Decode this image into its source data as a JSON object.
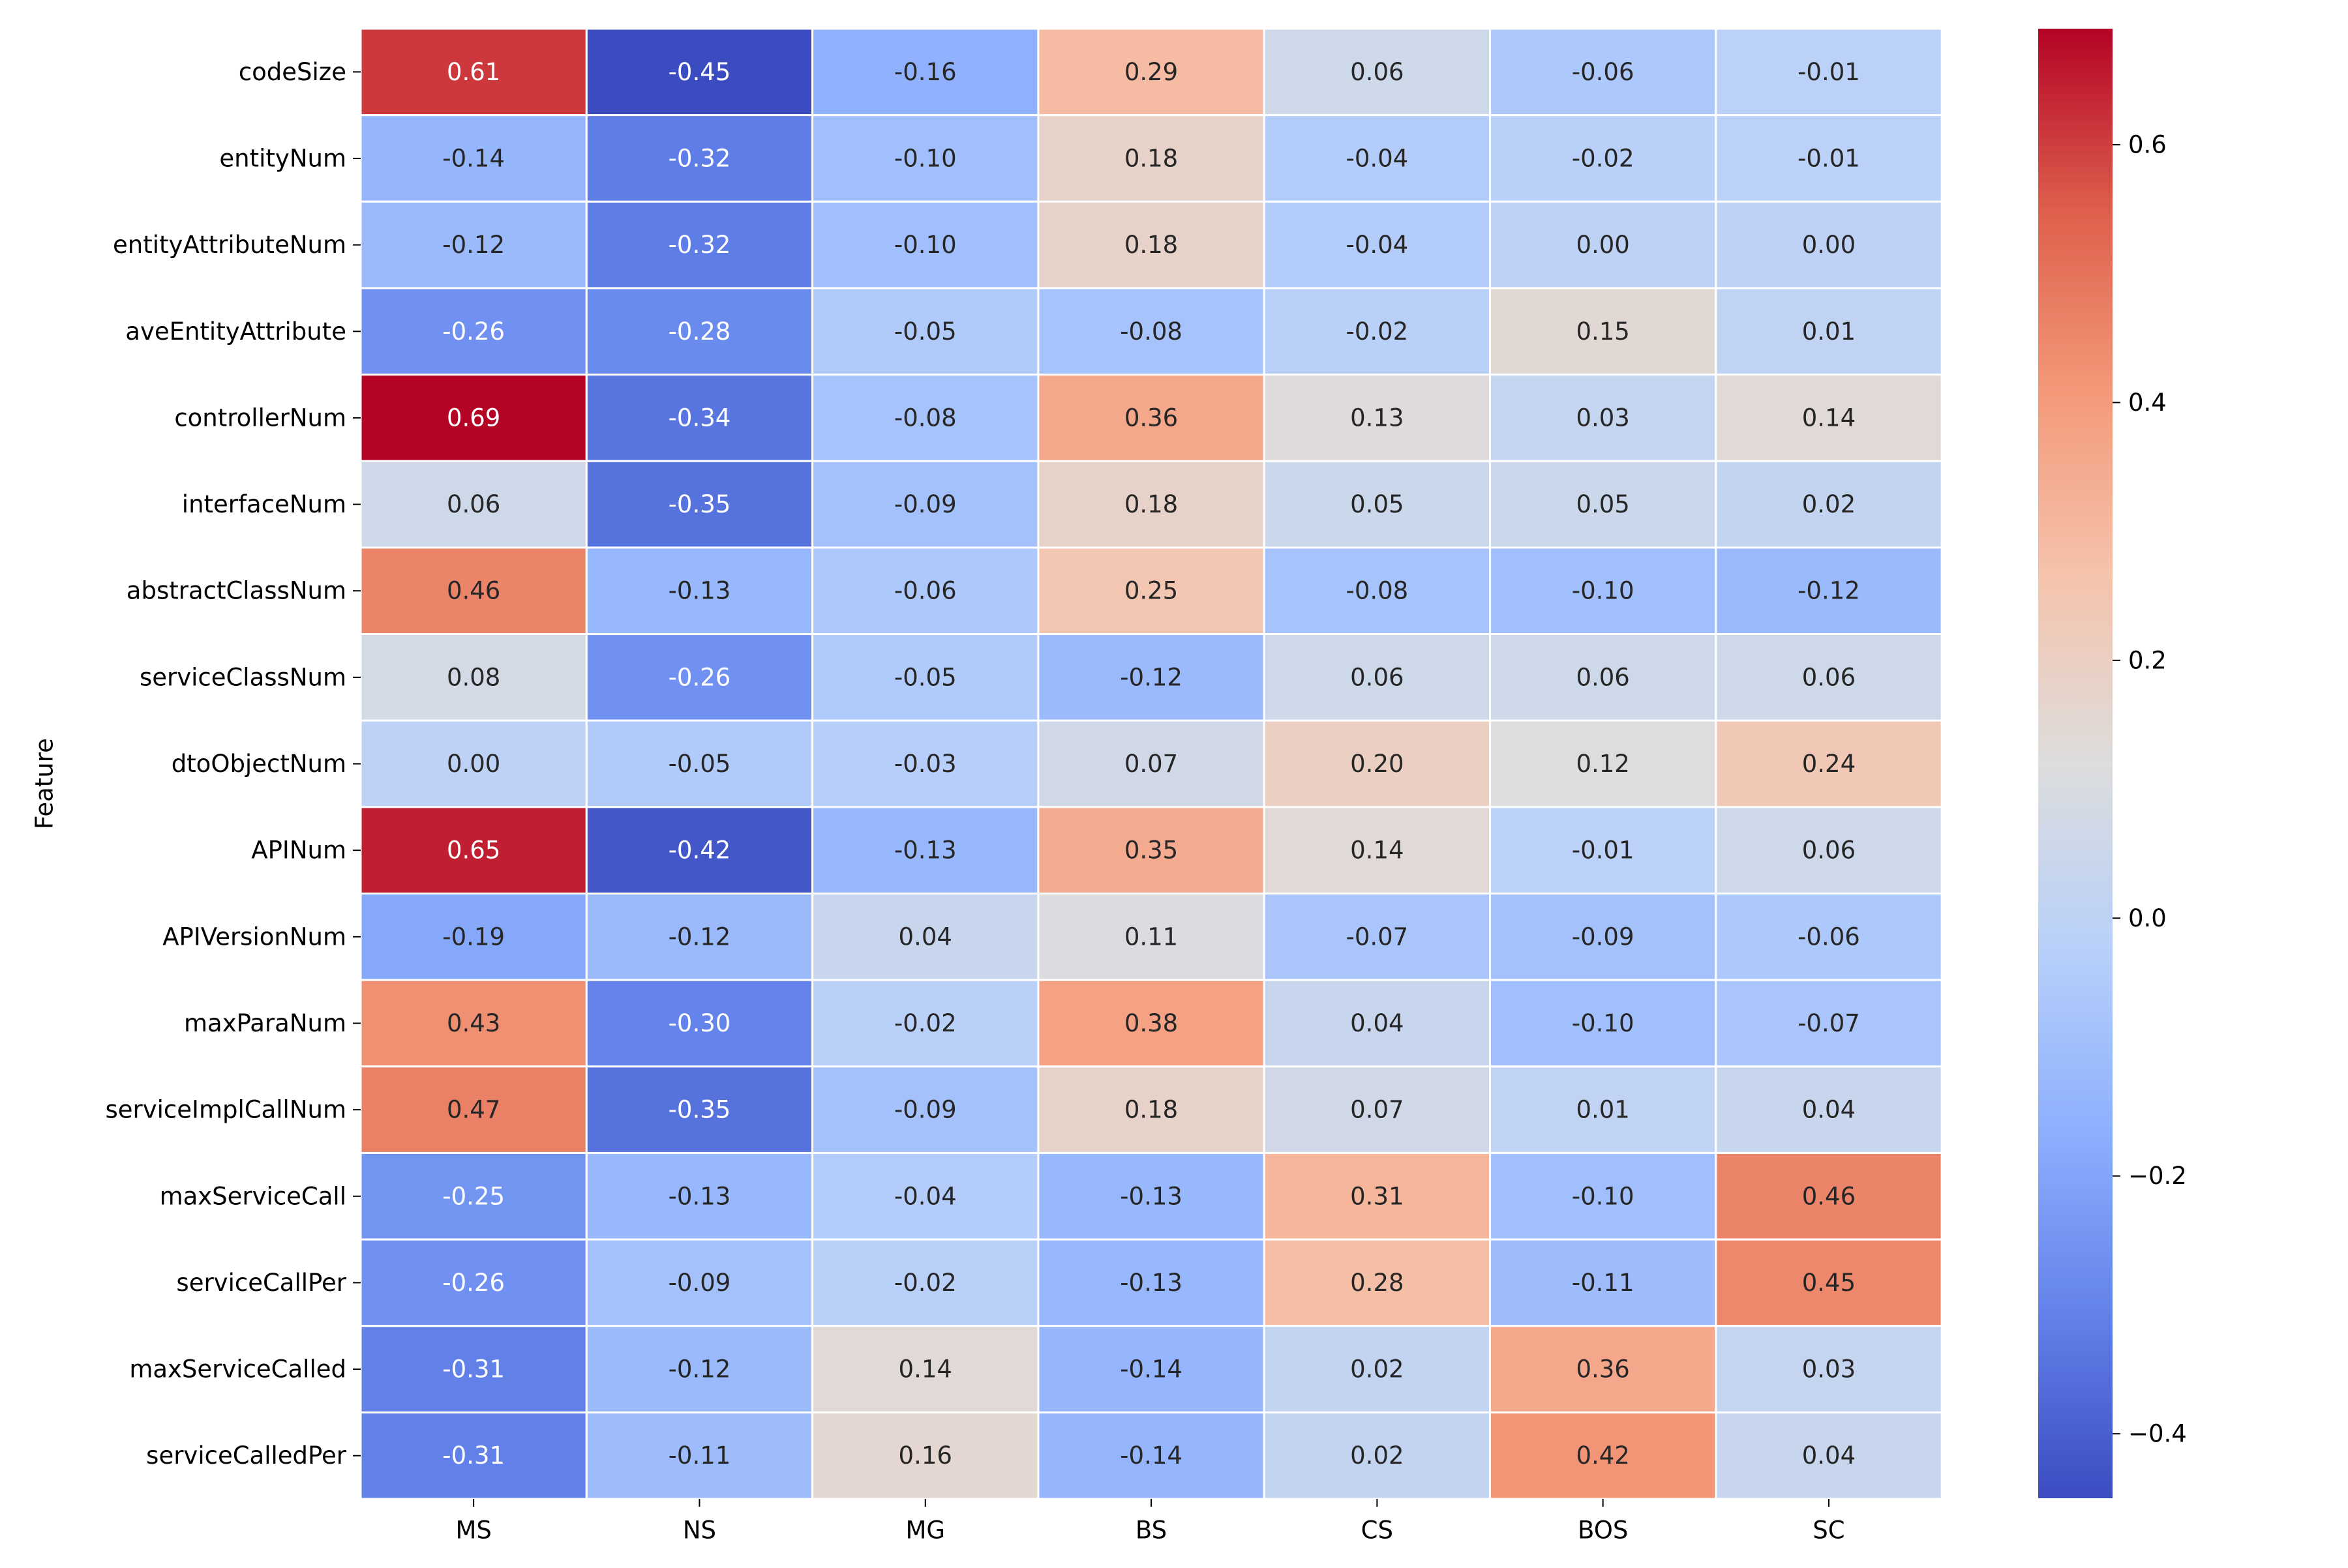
{
  "chart_data": {
    "type": "heatmap",
    "title": "",
    "xlabel": "",
    "ylabel": "Feature",
    "x_categories": [
      "MS",
      "NS",
      "MG",
      "BS",
      "CS",
      "BOS",
      "SC"
    ],
    "y_categories": [
      "codeSize",
      "entityNum",
      "entityAttributeNum",
      "aveEntityAttribute",
      "controllerNum",
      "interfaceNum",
      "abstractClassNum",
      "serviceClassNum",
      "dtoObjectNum",
      "APINum",
      "APIVersionNum",
      "maxParaNum",
      "serviceImplCallNum",
      "maxServiceCall",
      "serviceCallPer",
      "maxServiceCalled",
      "serviceCalledPer"
    ],
    "values": [
      [
        0.61,
        -0.45,
        -0.16,
        0.29,
        0.06,
        -0.06,
        -0.01
      ],
      [
        -0.14,
        -0.32,
        -0.1,
        0.18,
        -0.04,
        -0.02,
        -0.01
      ],
      [
        -0.12,
        -0.32,
        -0.1,
        0.18,
        -0.04,
        0.0,
        0.0
      ],
      [
        -0.26,
        -0.28,
        -0.05,
        -0.08,
        -0.02,
        0.15,
        0.01
      ],
      [
        0.69,
        -0.34,
        -0.08,
        0.36,
        0.13,
        0.03,
        0.14
      ],
      [
        0.06,
        -0.35,
        -0.09,
        0.18,
        0.05,
        0.05,
        0.02
      ],
      [
        0.46,
        -0.13,
        -0.06,
        0.25,
        -0.08,
        -0.1,
        -0.12
      ],
      [
        0.08,
        -0.26,
        -0.05,
        -0.12,
        0.06,
        0.06,
        0.06
      ],
      [
        0.0,
        -0.05,
        -0.03,
        0.07,
        0.2,
        0.12,
        0.24
      ],
      [
        0.65,
        -0.42,
        -0.13,
        0.35,
        0.14,
        -0.01,
        0.06
      ],
      [
        -0.19,
        -0.12,
        0.04,
        0.11,
        -0.07,
        -0.09,
        -0.06
      ],
      [
        0.43,
        -0.3,
        -0.02,
        0.38,
        0.04,
        -0.1,
        -0.07
      ],
      [
        0.47,
        -0.35,
        -0.09,
        0.18,
        0.07,
        0.01,
        0.04
      ],
      [
        -0.25,
        -0.13,
        -0.04,
        -0.13,
        0.31,
        -0.1,
        0.46
      ],
      [
        -0.26,
        -0.09,
        -0.02,
        -0.13,
        0.28,
        -0.11,
        0.45
      ],
      [
        -0.31,
        -0.12,
        0.14,
        -0.14,
        0.02,
        0.36,
        0.03
      ],
      [
        -0.31,
        -0.11,
        0.16,
        -0.14,
        0.02,
        0.42,
        0.04
      ]
    ],
    "value_format": "0.00",
    "colormap": "coolwarm",
    "vmin": -0.45,
    "vmax": 0.69,
    "colorbar_ticks": [
      0.6,
      0.4,
      0.2,
      0.0,
      -0.2,
      -0.4
    ],
    "colorbar_tick_labels": [
      "0.6",
      "0.4",
      "0.2",
      "0.0",
      "−0.2",
      "−0.4"
    ],
    "cell_border_color": "#ffffff",
    "grid": false,
    "legend": "colorbar-right"
  }
}
